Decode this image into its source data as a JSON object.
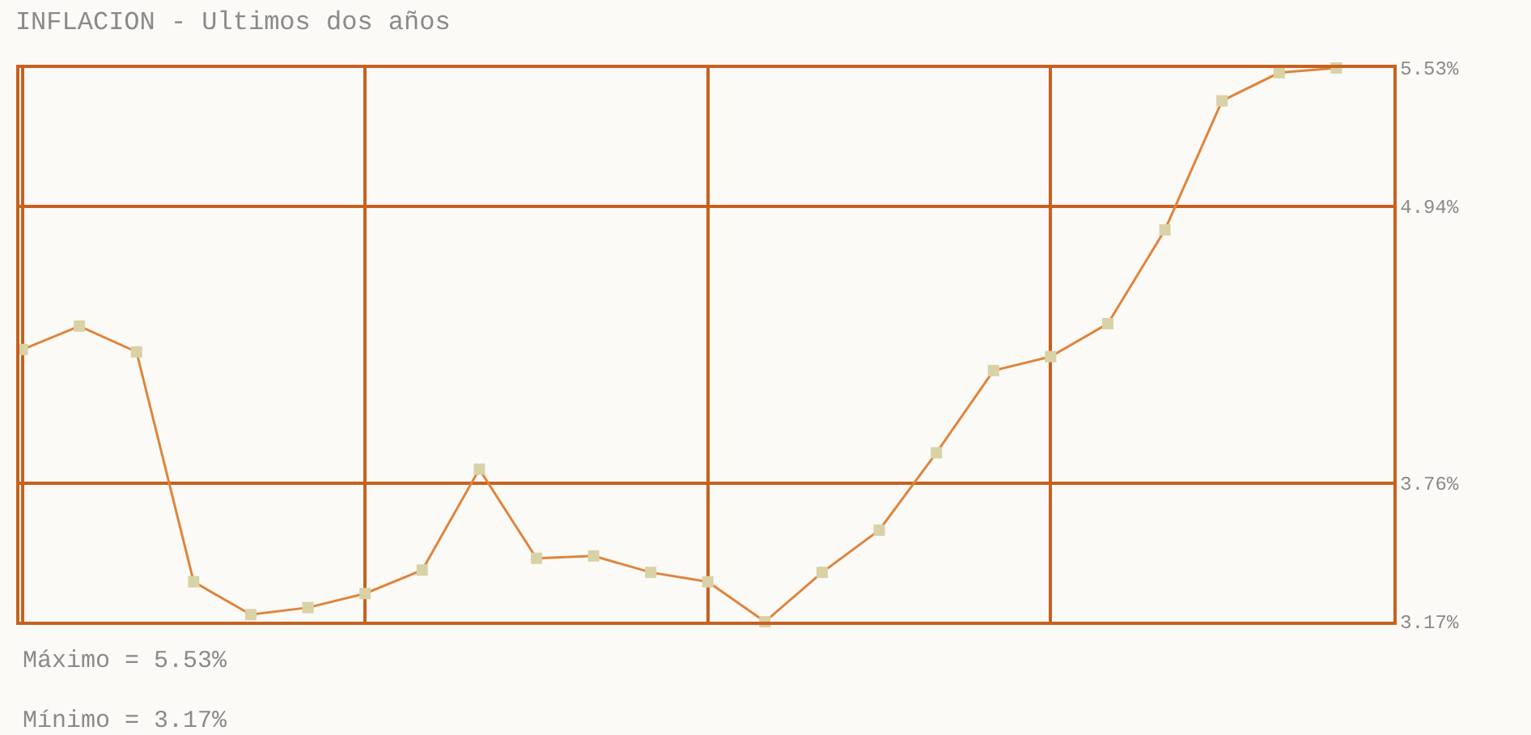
{
  "chart_data": {
    "type": "line",
    "title": "INFLACION - Ultimos dos años",
    "categories": [
      null,
      null,
      null,
      null,
      null,
      null,
      null,
      null,
      null,
      null,
      null,
      null,
      null,
      null,
      null,
      null,
      null,
      null,
      null,
      null,
      null,
      null,
      null,
      null
    ],
    "series": [
      {
        "color": "#e0843c",
        "values": [
          4.33,
          4.43,
          4.32,
          3.34,
          3.2,
          3.23,
          3.29,
          3.39,
          3.82,
          3.44,
          3.45,
          3.38,
          3.34,
          3.17,
          3.38,
          3.56,
          3.89,
          4.24,
          4.3,
          4.44,
          4.84,
          5.39,
          5.51,
          5.53
        ]
      }
    ],
    "ylim": [
      3.17,
      5.53
    ],
    "yticks": [
      {
        "value": 3.17,
        "label": "3.17%"
      },
      {
        "value": 3.76,
        "label": "3.76%"
      },
      {
        "value": 4.94,
        "label": "4.94%"
      },
      {
        "value": 5.53,
        "label": "5.53%"
      }
    ],
    "grid": true,
    "marker": "square",
    "line_style": "solid",
    "annotations": [
      "Máximo = 5.53%",
      "Mínimo = 3.17%"
    ]
  }
}
